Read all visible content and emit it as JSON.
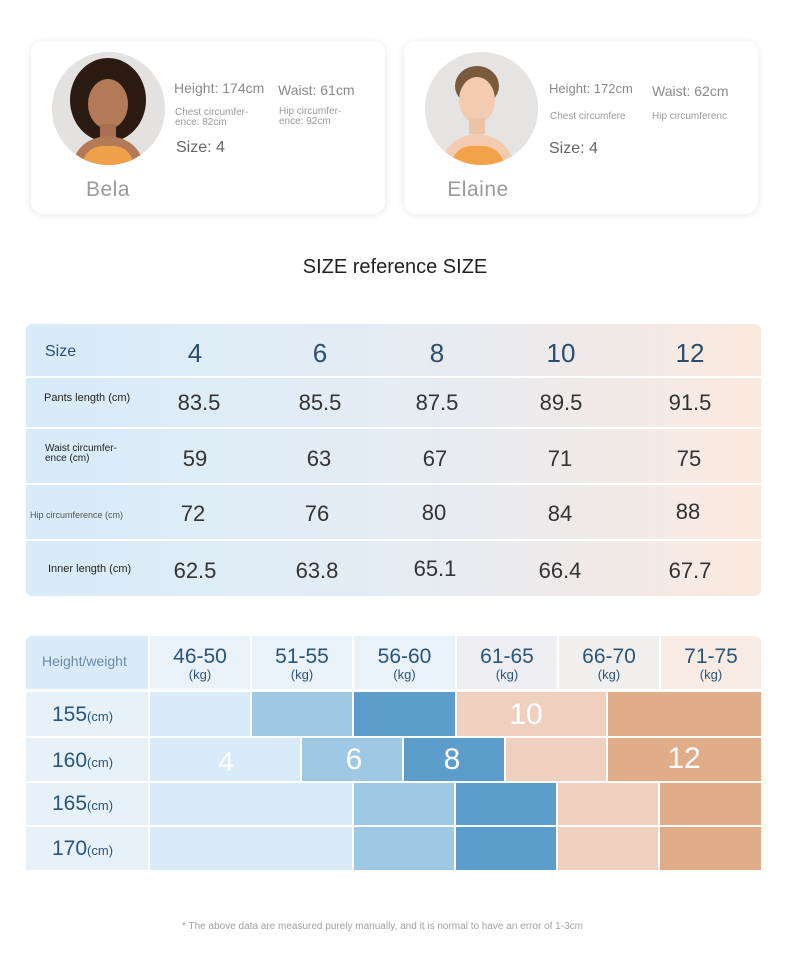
{
  "models": [
    {
      "name": "Bela",
      "height": "Height: 174cm",
      "waist": "Waist: 61cm",
      "chest": "Chest circumfer-ence: 82cm",
      "hip": "Hip circumfer-ence: 92cm",
      "size": "Size: 4"
    },
    {
      "name": "Elaine",
      "height": "Height: 172cm",
      "waist": "Waist: 62cm",
      "chest": "Chest circumfere",
      "hip": "Hip circumferenc",
      "size": "Size: 4"
    }
  ],
  "section_title": "SIZE reference SIZE",
  "size_table": {
    "header_label": "Size",
    "sizes": [
      "4",
      "6",
      "8",
      "10",
      "12"
    ],
    "rows": [
      {
        "label": "Pants length (cm)",
        "values": [
          "83.5",
          "85.5",
          "87.5",
          "89.5",
          "91.5"
        ]
      },
      {
        "label": "Waist circumfer-ence (cm)",
        "values": [
          "59",
          "63",
          "67",
          "71",
          "75"
        ]
      },
      {
        "label": "Hip circumference (cm)",
        "values": [
          "72",
          "76",
          "80",
          "84",
          "88"
        ]
      },
      {
        "label": "Inner length (cm)",
        "values": [
          "62.5",
          "63.8",
          "65.1",
          "66.4",
          "67.7"
        ]
      }
    ]
  },
  "height_weight": {
    "corner_label": "Height/weight",
    "weight_ranges": [
      "46-50",
      "51-55",
      "56-60",
      "61-65",
      "66-70",
      "71-75"
    ],
    "weight_unit": "(kg)",
    "height_unit": "(cm)",
    "heights": [
      "155",
      "160",
      "165",
      "170"
    ],
    "size_labels": {
      "row155": "10",
      "row160_a": "4",
      "row160_b": "6",
      "row160_c": "8",
      "row160_d": "12"
    }
  },
  "footnote": "* The above data are measured purely manually, and it is normal to have an error of 1-3cm"
}
